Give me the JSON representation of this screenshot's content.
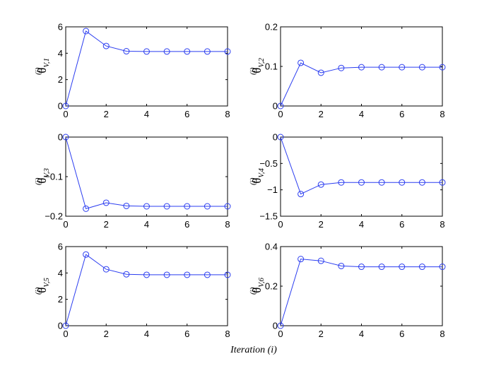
{
  "figure": {
    "xlabel": "Iteration (i)",
    "line_color": "#2b3df0",
    "marker": "circle"
  },
  "chart_data": [
    {
      "type": "line",
      "ylabel": {
        "base": "θ",
        "sup": "(i)",
        "sub": "V,1"
      },
      "x": [
        0,
        1,
        2,
        3,
        4,
        5,
        6,
        7,
        8
      ],
      "values": [
        0,
        5.68,
        4.55,
        4.15,
        4.13,
        4.13,
        4.13,
        4.13,
        4.13
      ],
      "xlim": [
        0,
        8
      ],
      "ylim": [
        0,
        6
      ],
      "xticks": [
        0,
        2,
        4,
        6,
        8
      ],
      "yticks": [
        0,
        2,
        4,
        6
      ],
      "xtick_labels": [
        "0",
        "2",
        "4",
        "6",
        "8"
      ],
      "ytick_labels": [
        "0",
        "2",
        "4",
        "6"
      ]
    },
    {
      "type": "line",
      "ylabel": {
        "base": "θ",
        "sup": "(i)",
        "sub": "V,2"
      },
      "x": [
        0,
        1,
        2,
        3,
        4,
        5,
        6,
        7,
        8
      ],
      "values": [
        0,
        0.109,
        0.084,
        0.096,
        0.098,
        0.098,
        0.098,
        0.098,
        0.098
      ],
      "xlim": [
        0,
        8
      ],
      "ylim": [
        0,
        0.2
      ],
      "xticks": [
        0,
        2,
        4,
        6,
        8
      ],
      "yticks": [
        0,
        0.1,
        0.2
      ],
      "xtick_labels": [
        "0",
        "2",
        "4",
        "6",
        "8"
      ],
      "ytick_labels": [
        "0",
        "0.1",
        "0.2"
      ]
    },
    {
      "type": "line",
      "ylabel": {
        "base": "θ",
        "sup": "(i)",
        "sub": "V,3"
      },
      "x": [
        0,
        1,
        2,
        3,
        4,
        5,
        6,
        7,
        8
      ],
      "values": [
        0,
        -0.181,
        -0.166,
        -0.174,
        -0.175,
        -0.175,
        -0.175,
        -0.175,
        -0.175
      ],
      "xlim": [
        0,
        8
      ],
      "ylim": [
        -0.2,
        0
      ],
      "xticks": [
        0,
        2,
        4,
        6,
        8
      ],
      "yticks": [
        -0.2,
        -0.1,
        0
      ],
      "xtick_labels": [
        "0",
        "2",
        "4",
        "6",
        "8"
      ],
      "ytick_labels": [
        "−0.2",
        "−0.1",
        "0"
      ]
    },
    {
      "type": "line",
      "ylabel": {
        "base": "θ",
        "sup": "(i)",
        "sub": "V,4"
      },
      "x": [
        0,
        1,
        2,
        3,
        4,
        5,
        6,
        7,
        8
      ],
      "values": [
        0,
        -1.08,
        -0.9,
        -0.86,
        -0.86,
        -0.86,
        -0.86,
        -0.86,
        -0.86
      ],
      "xlim": [
        0,
        8
      ],
      "ylim": [
        -1.5,
        0
      ],
      "xticks": [
        0,
        2,
        4,
        6,
        8
      ],
      "yticks": [
        -1.5,
        -1,
        -0.5,
        0
      ],
      "xtick_labels": [
        "0",
        "2",
        "4",
        "6",
        "8"
      ],
      "ytick_labels": [
        "−1.5",
        "−1",
        "−0.5",
        "0"
      ]
    },
    {
      "type": "line",
      "ylabel": {
        "base": "θ",
        "sup": "(i)",
        "sub": "V,5"
      },
      "x": [
        0,
        1,
        2,
        3,
        4,
        5,
        6,
        7,
        8
      ],
      "values": [
        0,
        5.4,
        4.28,
        3.9,
        3.86,
        3.86,
        3.86,
        3.86,
        3.86
      ],
      "xlim": [
        0,
        8
      ],
      "ylim": [
        0,
        6
      ],
      "xticks": [
        0,
        2,
        4,
        6,
        8
      ],
      "yticks": [
        0,
        2,
        4,
        6
      ],
      "xtick_labels": [
        "0",
        "2",
        "4",
        "6",
        "8"
      ],
      "ytick_labels": [
        "0",
        "2",
        "4",
        "6"
      ]
    },
    {
      "type": "line",
      "ylabel": {
        "base": "θ",
        "sup": "(i)",
        "sub": "V,6"
      },
      "x": [
        0,
        1,
        2,
        3,
        4,
        5,
        6,
        7,
        8
      ],
      "values": [
        0,
        0.337,
        0.328,
        0.302,
        0.298,
        0.298,
        0.298,
        0.298,
        0.298
      ],
      "xlim": [
        0,
        8
      ],
      "ylim": [
        0,
        0.4
      ],
      "xticks": [
        0,
        2,
        4,
        6,
        8
      ],
      "yticks": [
        0,
        0.2,
        0.4
      ],
      "xtick_labels": [
        "0",
        "2",
        "4",
        "6",
        "8"
      ],
      "ytick_labels": [
        "0",
        "0.2",
        "0.4"
      ]
    }
  ]
}
